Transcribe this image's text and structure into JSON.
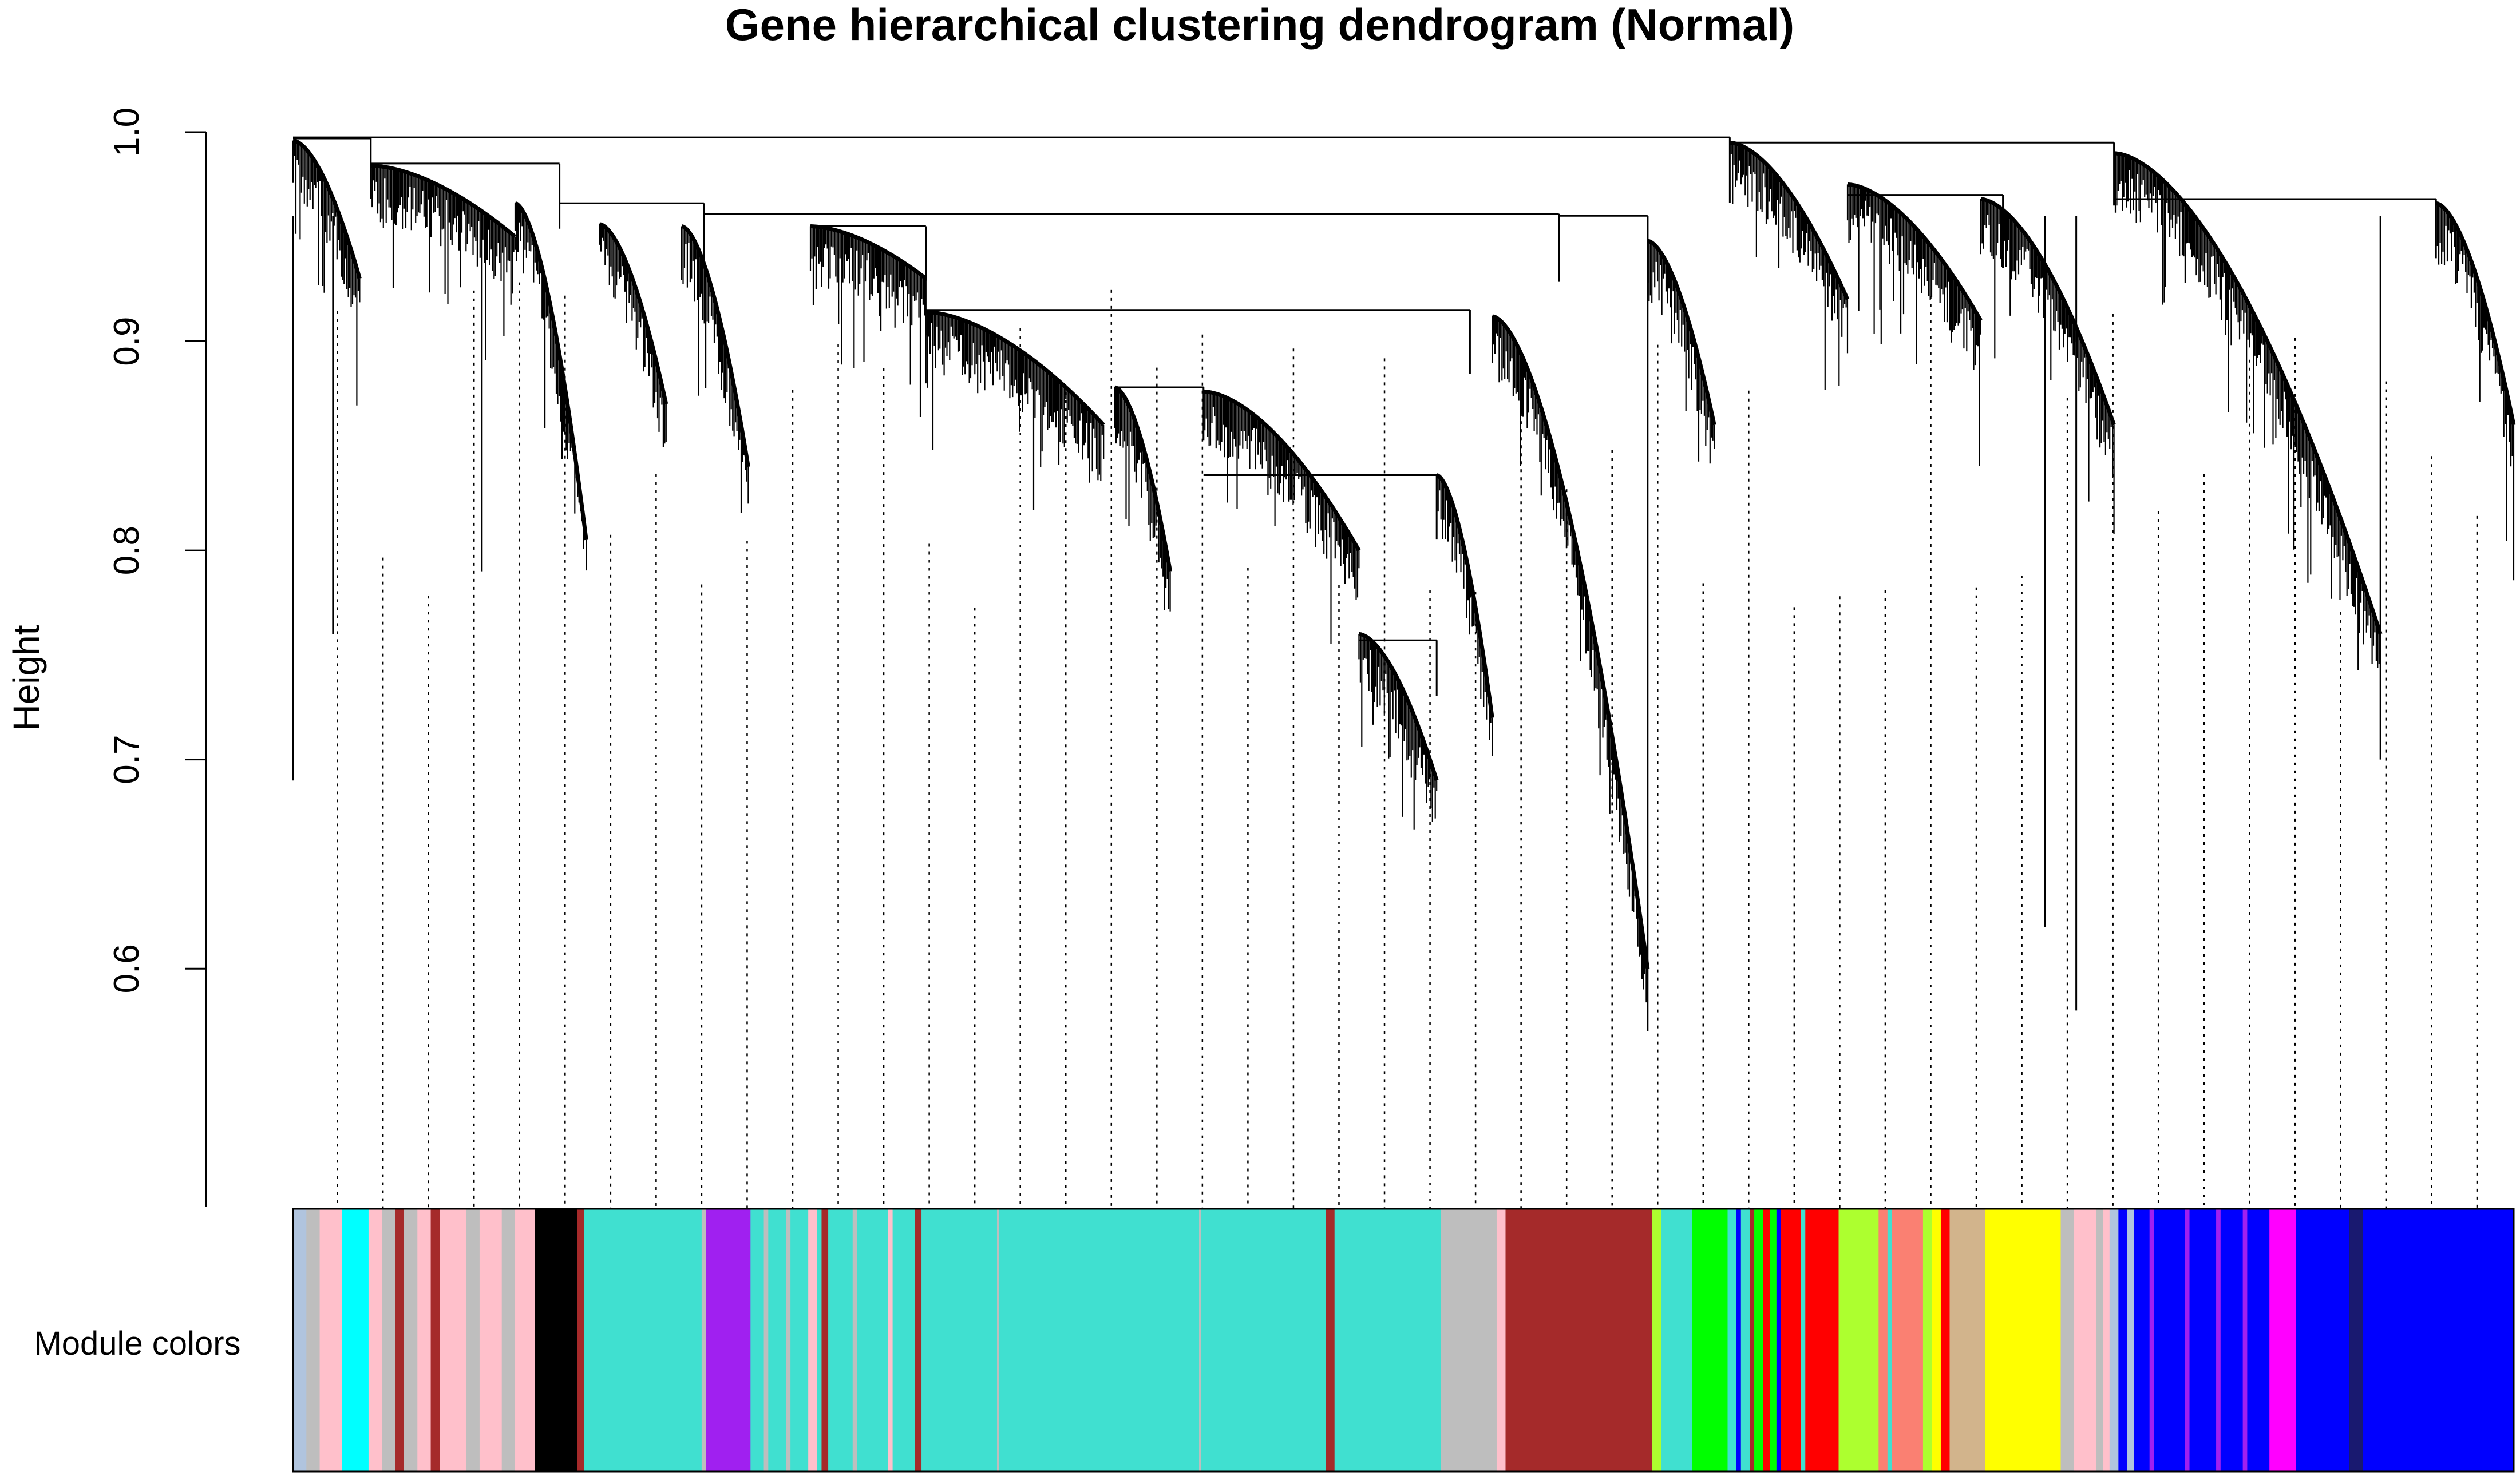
{
  "chart_data": {
    "type": "dendrogram",
    "title": "Gene hierarchical clustering dendrogram (Normal)",
    "ylabel": "Height",
    "xlabel": "",
    "ylim": [
      0.55,
      1.0
    ],
    "yticks": [
      0.6,
      0.7,
      0.8,
      0.9,
      1.0
    ],
    "ytick_labels": [
      "0.6",
      "0.7",
      "0.8",
      "0.9",
      "1.0"
    ],
    "color_bar_label": "Module colors",
    "module_colors": {
      "turquoise": "#40e0d0",
      "brown": "#a52a2a",
      "blue": "#0000ff",
      "yellow": "#ffff00",
      "grey": "#bebebe",
      "pink": "#ffc0cb",
      "black": "#000000",
      "purple": "#a020f0",
      "cyan": "#00ffff",
      "green": "#00ff00",
      "red": "#ff0000",
      "greenyellow": "#adff2f",
      "salmon": "#fa8072",
      "tan": "#d2b48c",
      "magenta": "#ff00ff",
      "midnightblue": "#191970",
      "lightsteelblue": "#b0c4de"
    },
    "color_segments": [
      {
        "color": "lightsteelblue",
        "start": 0.0,
        "end": 0.006
      },
      {
        "color": "grey",
        "start": 0.006,
        "end": 0.012
      },
      {
        "color": "pink",
        "start": 0.012,
        "end": 0.022
      },
      {
        "color": "cyan",
        "start": 0.022,
        "end": 0.034
      },
      {
        "color": "pink",
        "start": 0.034,
        "end": 0.04
      },
      {
        "color": "grey",
        "start": 0.04,
        "end": 0.046
      },
      {
        "color": "brown",
        "start": 0.046,
        "end": 0.05
      },
      {
        "color": "grey",
        "start": 0.05,
        "end": 0.056
      },
      {
        "color": "pink",
        "start": 0.056,
        "end": 0.062
      },
      {
        "color": "brown",
        "start": 0.062,
        "end": 0.066
      },
      {
        "color": "pink",
        "start": 0.066,
        "end": 0.078
      },
      {
        "color": "grey",
        "start": 0.078,
        "end": 0.084
      },
      {
        "color": "pink",
        "start": 0.084,
        "end": 0.094
      },
      {
        "color": "grey",
        "start": 0.094,
        "end": 0.1
      },
      {
        "color": "pink",
        "start": 0.1,
        "end": 0.109
      },
      {
        "color": "black",
        "start": 0.109,
        "end": 0.128
      },
      {
        "color": "brown",
        "start": 0.128,
        "end": 0.131
      },
      {
        "color": "turquoise",
        "start": 0.131,
        "end": 0.184
      },
      {
        "color": "grey",
        "start": 0.184,
        "end": 0.186
      },
      {
        "color": "purple",
        "start": 0.186,
        "end": 0.206
      },
      {
        "color": "turquoise",
        "start": 0.206,
        "end": 0.212
      },
      {
        "color": "grey",
        "start": 0.212,
        "end": 0.214
      },
      {
        "color": "turquoise",
        "start": 0.214,
        "end": 0.222
      },
      {
        "color": "grey",
        "start": 0.222,
        "end": 0.224
      },
      {
        "color": "turquoise",
        "start": 0.224,
        "end": 0.232
      },
      {
        "color": "pink",
        "start": 0.232,
        "end": 0.236
      },
      {
        "color": "turquoise",
        "start": 0.236,
        "end": 0.238
      },
      {
        "color": "brown",
        "start": 0.238,
        "end": 0.241
      },
      {
        "color": "turquoise",
        "start": 0.241,
        "end": 0.252
      },
      {
        "color": "grey",
        "start": 0.252,
        "end": 0.254
      },
      {
        "color": "turquoise",
        "start": 0.254,
        "end": 0.268
      },
      {
        "color": "pink",
        "start": 0.268,
        "end": 0.27
      },
      {
        "color": "turquoise",
        "start": 0.27,
        "end": 0.28
      },
      {
        "color": "brown",
        "start": 0.28,
        "end": 0.283
      },
      {
        "color": "turquoise",
        "start": 0.283,
        "end": 0.317
      },
      {
        "color": "grey",
        "start": 0.317,
        "end": 0.318
      },
      {
        "color": "turquoise",
        "start": 0.318,
        "end": 0.408
      },
      {
        "color": "grey",
        "start": 0.408,
        "end": 0.409
      },
      {
        "color": "turquoise",
        "start": 0.409,
        "end": 0.465
      },
      {
        "color": "brown",
        "start": 0.465,
        "end": 0.469
      },
      {
        "color": "turquoise",
        "start": 0.469,
        "end": 0.517
      },
      {
        "color": "grey",
        "start": 0.517,
        "end": 0.542
      },
      {
        "color": "pink",
        "start": 0.542,
        "end": 0.546
      },
      {
        "color": "brown",
        "start": 0.546,
        "end": 0.612
      },
      {
        "color": "greenyellow",
        "start": 0.612,
        "end": 0.616
      },
      {
        "color": "turquoise",
        "start": 0.616,
        "end": 0.63
      },
      {
        "color": "green",
        "start": 0.63,
        "end": 0.646
      },
      {
        "color": "turquoise",
        "start": 0.646,
        "end": 0.65
      },
      {
        "color": "blue",
        "start": 0.65,
        "end": 0.652
      },
      {
        "color": "turquoise",
        "start": 0.652,
        "end": 0.656
      },
      {
        "color": "brown",
        "start": 0.656,
        "end": 0.658
      },
      {
        "color": "green",
        "start": 0.658,
        "end": 0.662
      },
      {
        "color": "red",
        "start": 0.662,
        "end": 0.665
      },
      {
        "color": "green",
        "start": 0.665,
        "end": 0.668
      },
      {
        "color": "blue",
        "start": 0.668,
        "end": 0.67
      },
      {
        "color": "red",
        "start": 0.67,
        "end": 0.679
      },
      {
        "color": "turquoise",
        "start": 0.679,
        "end": 0.681
      },
      {
        "color": "red",
        "start": 0.681,
        "end": 0.696
      },
      {
        "color": "greenyellow",
        "start": 0.696,
        "end": 0.714
      },
      {
        "color": "salmon",
        "start": 0.714,
        "end": 0.718
      },
      {
        "color": "turquoise",
        "start": 0.718,
        "end": 0.72
      },
      {
        "color": "salmon",
        "start": 0.72,
        "end": 0.734
      },
      {
        "color": "greenyellow",
        "start": 0.734,
        "end": 0.738
      },
      {
        "color": "yellow",
        "start": 0.738,
        "end": 0.742
      },
      {
        "color": "red",
        "start": 0.742,
        "end": 0.746
      },
      {
        "color": "tan",
        "start": 0.746,
        "end": 0.762
      },
      {
        "color": "yellow",
        "start": 0.762,
        "end": 0.796
      },
      {
        "color": "grey",
        "start": 0.796,
        "end": 0.802
      },
      {
        "color": "pink",
        "start": 0.802,
        "end": 0.812
      },
      {
        "color": "grey",
        "start": 0.812,
        "end": 0.815
      },
      {
        "color": "pink",
        "start": 0.815,
        "end": 0.818
      },
      {
        "color": "lightsteelblue",
        "start": 0.818,
        "end": 0.822
      },
      {
        "color": "blue",
        "start": 0.822,
        "end": 0.826
      },
      {
        "color": "lightsteelblue",
        "start": 0.826,
        "end": 0.829
      },
      {
        "color": "blue",
        "start": 0.829,
        "end": 0.836
      },
      {
        "color": "purple",
        "start": 0.836,
        "end": 0.838
      },
      {
        "color": "blue",
        "start": 0.838,
        "end": 0.852
      },
      {
        "color": "purple",
        "start": 0.852,
        "end": 0.854
      },
      {
        "color": "blue",
        "start": 0.854,
        "end": 0.866
      },
      {
        "color": "purple",
        "start": 0.866,
        "end": 0.868
      },
      {
        "color": "blue",
        "start": 0.868,
        "end": 0.878
      },
      {
        "color": "purple",
        "start": 0.878,
        "end": 0.88
      },
      {
        "color": "blue",
        "start": 0.88,
        "end": 0.89
      },
      {
        "color": "magenta",
        "start": 0.89,
        "end": 0.902
      },
      {
        "color": "blue",
        "start": 0.902,
        "end": 0.926
      },
      {
        "color": "midnightblue",
        "start": 0.926,
        "end": 0.932
      },
      {
        "color": "blue",
        "start": 0.932,
        "end": 1.0
      }
    ],
    "merges": [
      {
        "from": 0.0,
        "to": 0.647,
        "height": 0.9975
      },
      {
        "from": 0.647,
        "to": 0.82,
        "height": 0.995
      },
      {
        "from": 0.0,
        "to": 0.035,
        "height": 0.997
      },
      {
        "from": 0.035,
        "to": 0.12,
        "height": 0.985
      },
      {
        "from": 0.12,
        "to": 0.185,
        "height": 0.966
      },
      {
        "from": 0.185,
        "to": 0.57,
        "height": 0.961
      },
      {
        "from": 0.233,
        "to": 0.285,
        "height": 0.955
      },
      {
        "from": 0.285,
        "to": 0.53,
        "height": 0.915
      },
      {
        "from": 0.37,
        "to": 0.41,
        "height": 0.878
      },
      {
        "from": 0.41,
        "to": 0.515,
        "height": 0.836
      },
      {
        "from": 0.48,
        "to": 0.515,
        "height": 0.757
      },
      {
        "from": 0.57,
        "to": 0.61,
        "height": 0.96
      },
      {
        "from": 0.7,
        "to": 0.77,
        "height": 0.97
      },
      {
        "from": 0.82,
        "to": 0.965,
        "height": 0.968
      }
    ]
  }
}
